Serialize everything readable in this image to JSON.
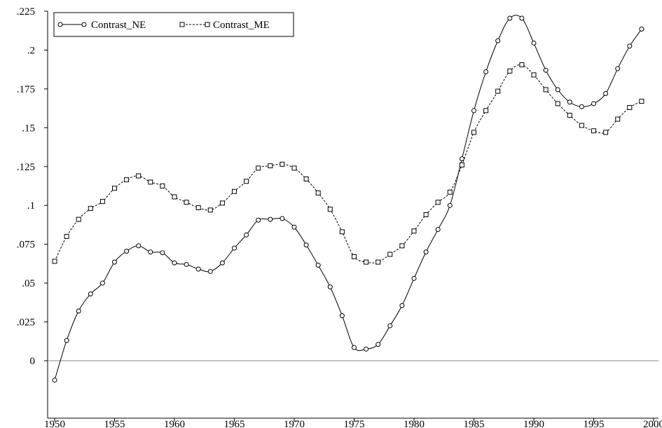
{
  "chart_data": {
    "type": "line",
    "title": "",
    "xlabel": "",
    "ylabel": "",
    "xlim": [
      1950,
      2000
    ],
    "ylim": [
      -0.037,
      0.225
    ],
    "x_ticks": [
      1950,
      1955,
      1960,
      1965,
      1970,
      1975,
      1980,
      1985,
      1990,
      1995,
      2000
    ],
    "x_tick_labels": [
      "1950",
      "1955",
      "1960",
      "1965",
      "1970",
      "1975",
      "1980",
      "1985",
      "1990",
      "1995",
      "2000"
    ],
    "y_ticks": [
      0,
      0.025,
      0.05,
      0.075,
      0.1,
      0.125,
      0.15,
      0.175,
      0.2,
      0.225
    ],
    "y_tick_labels": [
      "0",
      ".025",
      ".05",
      ".075",
      ".1",
      ".125",
      ".15",
      ".175",
      ".2",
      ".225"
    ],
    "zero_line": true,
    "grid": false,
    "legend_position": "top-left",
    "x": [
      1950,
      1951,
      1952,
      1953,
      1954,
      1955,
      1956,
      1957,
      1958,
      1959,
      1960,
      1961,
      1962,
      1963,
      1964,
      1965,
      1966,
      1967,
      1968,
      1969,
      1970,
      1971,
      1972,
      1973,
      1974,
      1975,
      1976,
      1977,
      1978,
      1979,
      1980,
      1981,
      1982,
      1983,
      1984,
      1985,
      1986,
      1987,
      1988,
      1989,
      1990,
      1991,
      1992,
      1993,
      1994,
      1995,
      1996,
      1997,
      1998,
      1999
    ],
    "series": [
      {
        "name": "Contrast_NE",
        "marker": "circle",
        "line_style": "solid",
        "color": "#000000",
        "values": [
          -0.0125,
          0.013,
          0.032,
          0.043,
          0.05,
          0.0635,
          0.0705,
          0.074,
          0.07,
          0.0695,
          0.063,
          0.062,
          0.059,
          0.0575,
          0.063,
          0.0725,
          0.081,
          0.0905,
          0.091,
          0.0915,
          0.086,
          0.0745,
          0.0615,
          0.0475,
          0.029,
          0.0085,
          0.0075,
          0.0105,
          0.0225,
          0.0355,
          0.053,
          0.07,
          0.0845,
          0.1,
          0.13,
          0.161,
          0.186,
          0.206,
          0.2205,
          0.2205,
          0.2045,
          0.187,
          0.1745,
          0.1665,
          0.1635,
          0.1655,
          0.172,
          0.188,
          0.2025,
          0.2135
        ]
      },
      {
        "name": "Contrast_ME",
        "marker": "square",
        "line_style": "dashed",
        "color": "#000000",
        "values": [
          0.064,
          0.08,
          0.091,
          0.098,
          0.1025,
          0.111,
          0.1165,
          0.119,
          0.115,
          0.1125,
          0.1055,
          0.102,
          0.0985,
          0.097,
          0.1015,
          0.109,
          0.1155,
          0.124,
          0.1255,
          0.1265,
          0.124,
          0.117,
          0.108,
          0.0975,
          0.083,
          0.067,
          0.0635,
          0.0635,
          0.0685,
          0.074,
          0.0835,
          0.094,
          0.102,
          0.1085,
          0.126,
          0.147,
          0.161,
          0.1735,
          0.1865,
          0.1905,
          0.184,
          0.1745,
          0.1655,
          0.158,
          0.1515,
          0.148,
          0.147,
          0.1555,
          0.163,
          0.167
        ]
      }
    ]
  }
}
